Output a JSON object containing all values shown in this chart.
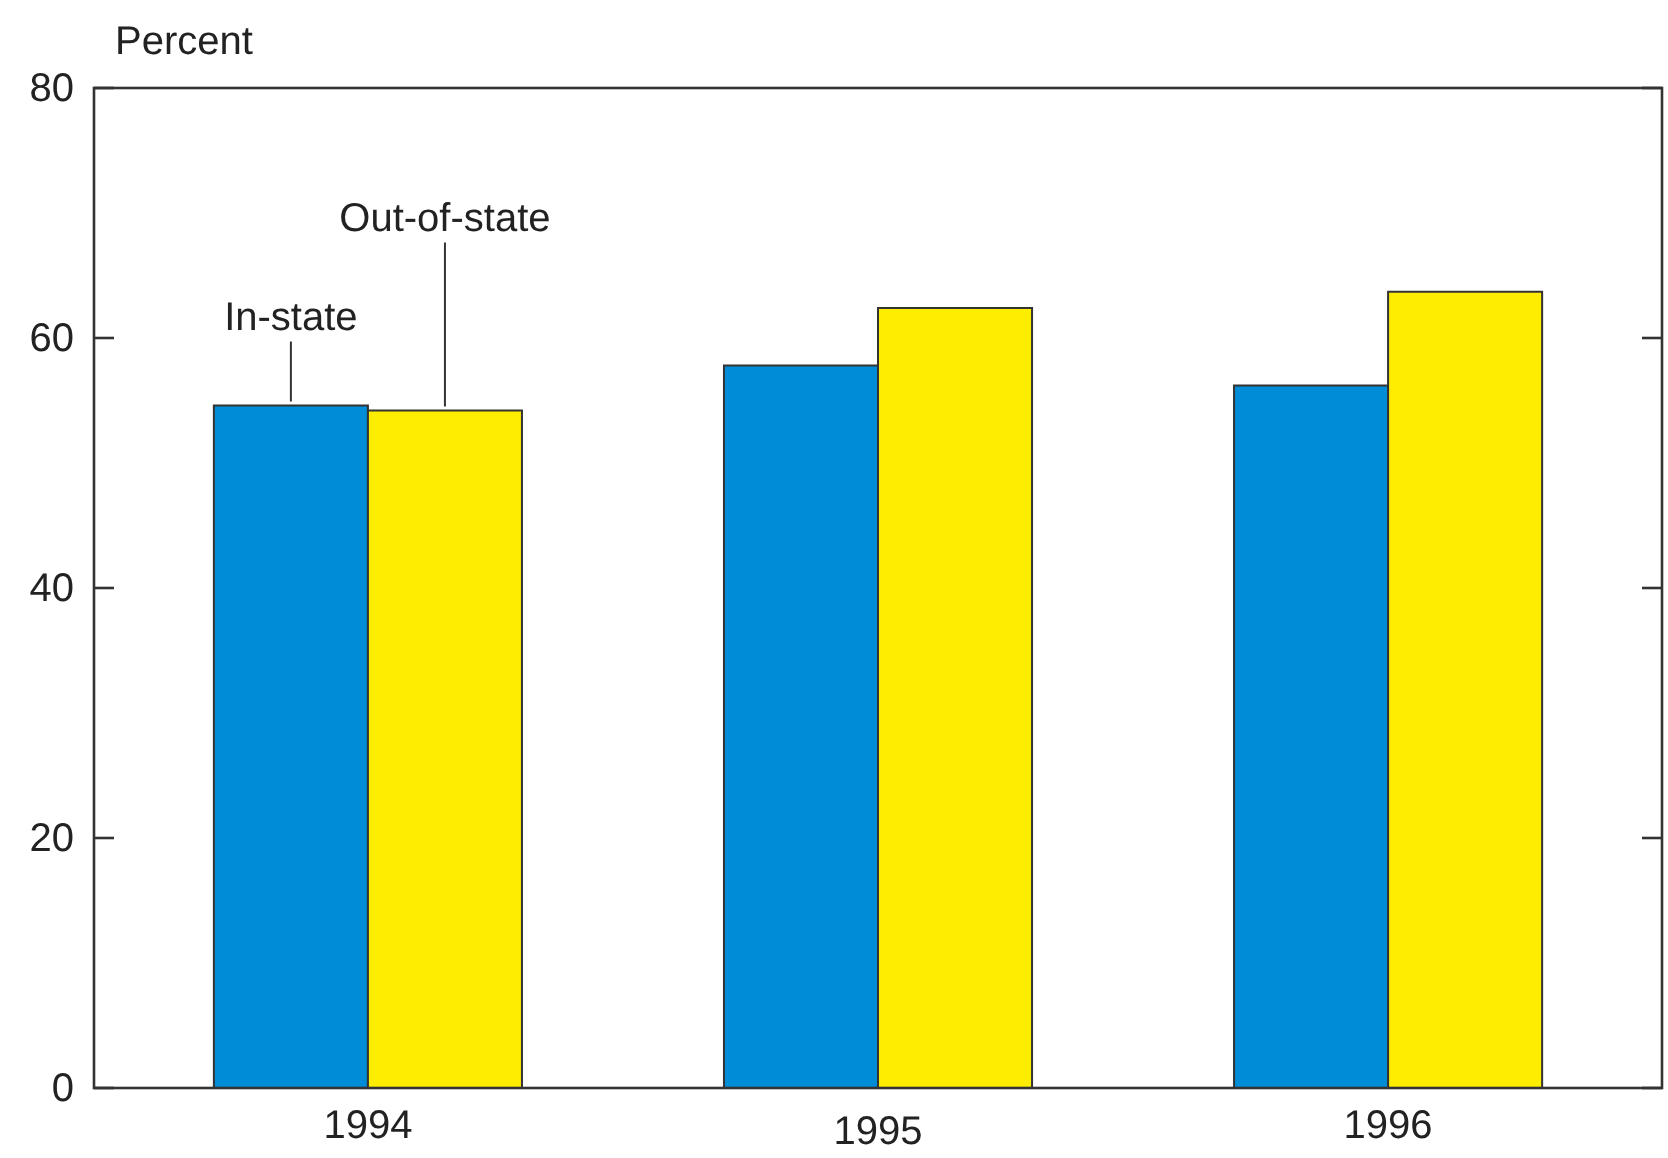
{
  "chart_data": {
    "type": "bar",
    "ylabel": "Percent",
    "categories": [
      "1994",
      "1995",
      "1996"
    ],
    "series": [
      {
        "name": "In-state",
        "color": "#008cd6",
        "values": [
          54.6,
          57.8,
          56.2
        ]
      },
      {
        "name": "Out-of-state",
        "color": "#ffed00",
        "values": [
          54.2,
          62.4,
          63.7
        ]
      }
    ],
    "ylim": [
      0,
      80
    ],
    "yticks": [
      0,
      20,
      40,
      60,
      80
    ],
    "grid": false
  }
}
